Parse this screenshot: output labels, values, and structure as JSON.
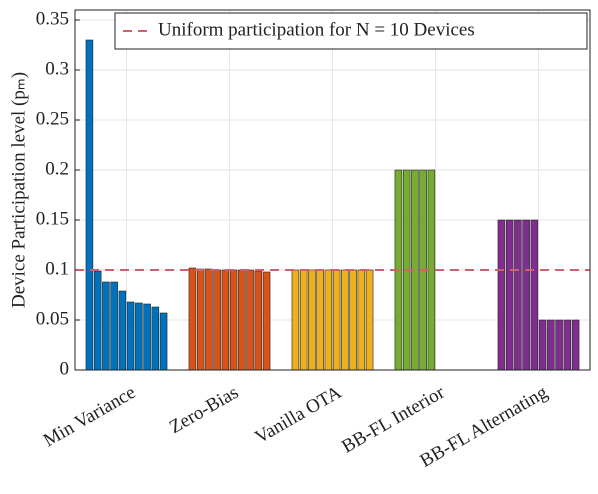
{
  "chart_data": {
    "type": "grouped_bar",
    "ylabel": "Device Participation level (pₘ)",
    "categories": [
      "Min Variance",
      "Zero-Bias",
      "Vanilla OTA",
      "BB-FL Interior",
      "BB-FL Alternating"
    ],
    "colors": [
      "#0072bd",
      "#d95319",
      "#edb120",
      "#77ac30",
      "#7e2f8e"
    ],
    "values": [
      [
        0.33,
        0.099,
        0.088,
        0.088,
        0.079,
        0.068,
        0.067,
        0.066,
        0.063,
        0.057
      ],
      [
        0.102,
        0.101,
        0.101,
        0.1,
        0.1,
        0.1,
        0.1,
        0.1,
        0.099,
        0.098
      ],
      [
        0.1,
        0.1,
        0.1,
        0.1,
        0.1,
        0.1,
        0.1,
        0.1,
        0.1,
        0.1
      ],
      [
        0.2,
        0.2,
        0.2,
        0.2,
        0.2,
        0,
        0,
        0,
        0,
        0
      ],
      [
        0.15,
        0.15,
        0.15,
        0.15,
        0.15,
        0.05,
        0.05,
        0.05,
        0.05,
        0.05
      ]
    ],
    "reference": {
      "label": "Uniform participation for N = 10 Devices",
      "value": 0.1,
      "color": "#d0606f"
    },
    "ylim": [
      0,
      0.36
    ],
    "yticks": [
      0,
      0.05,
      0.1,
      0.15,
      0.2,
      0.25,
      0.3,
      0.35
    ],
    "grid": true
  }
}
